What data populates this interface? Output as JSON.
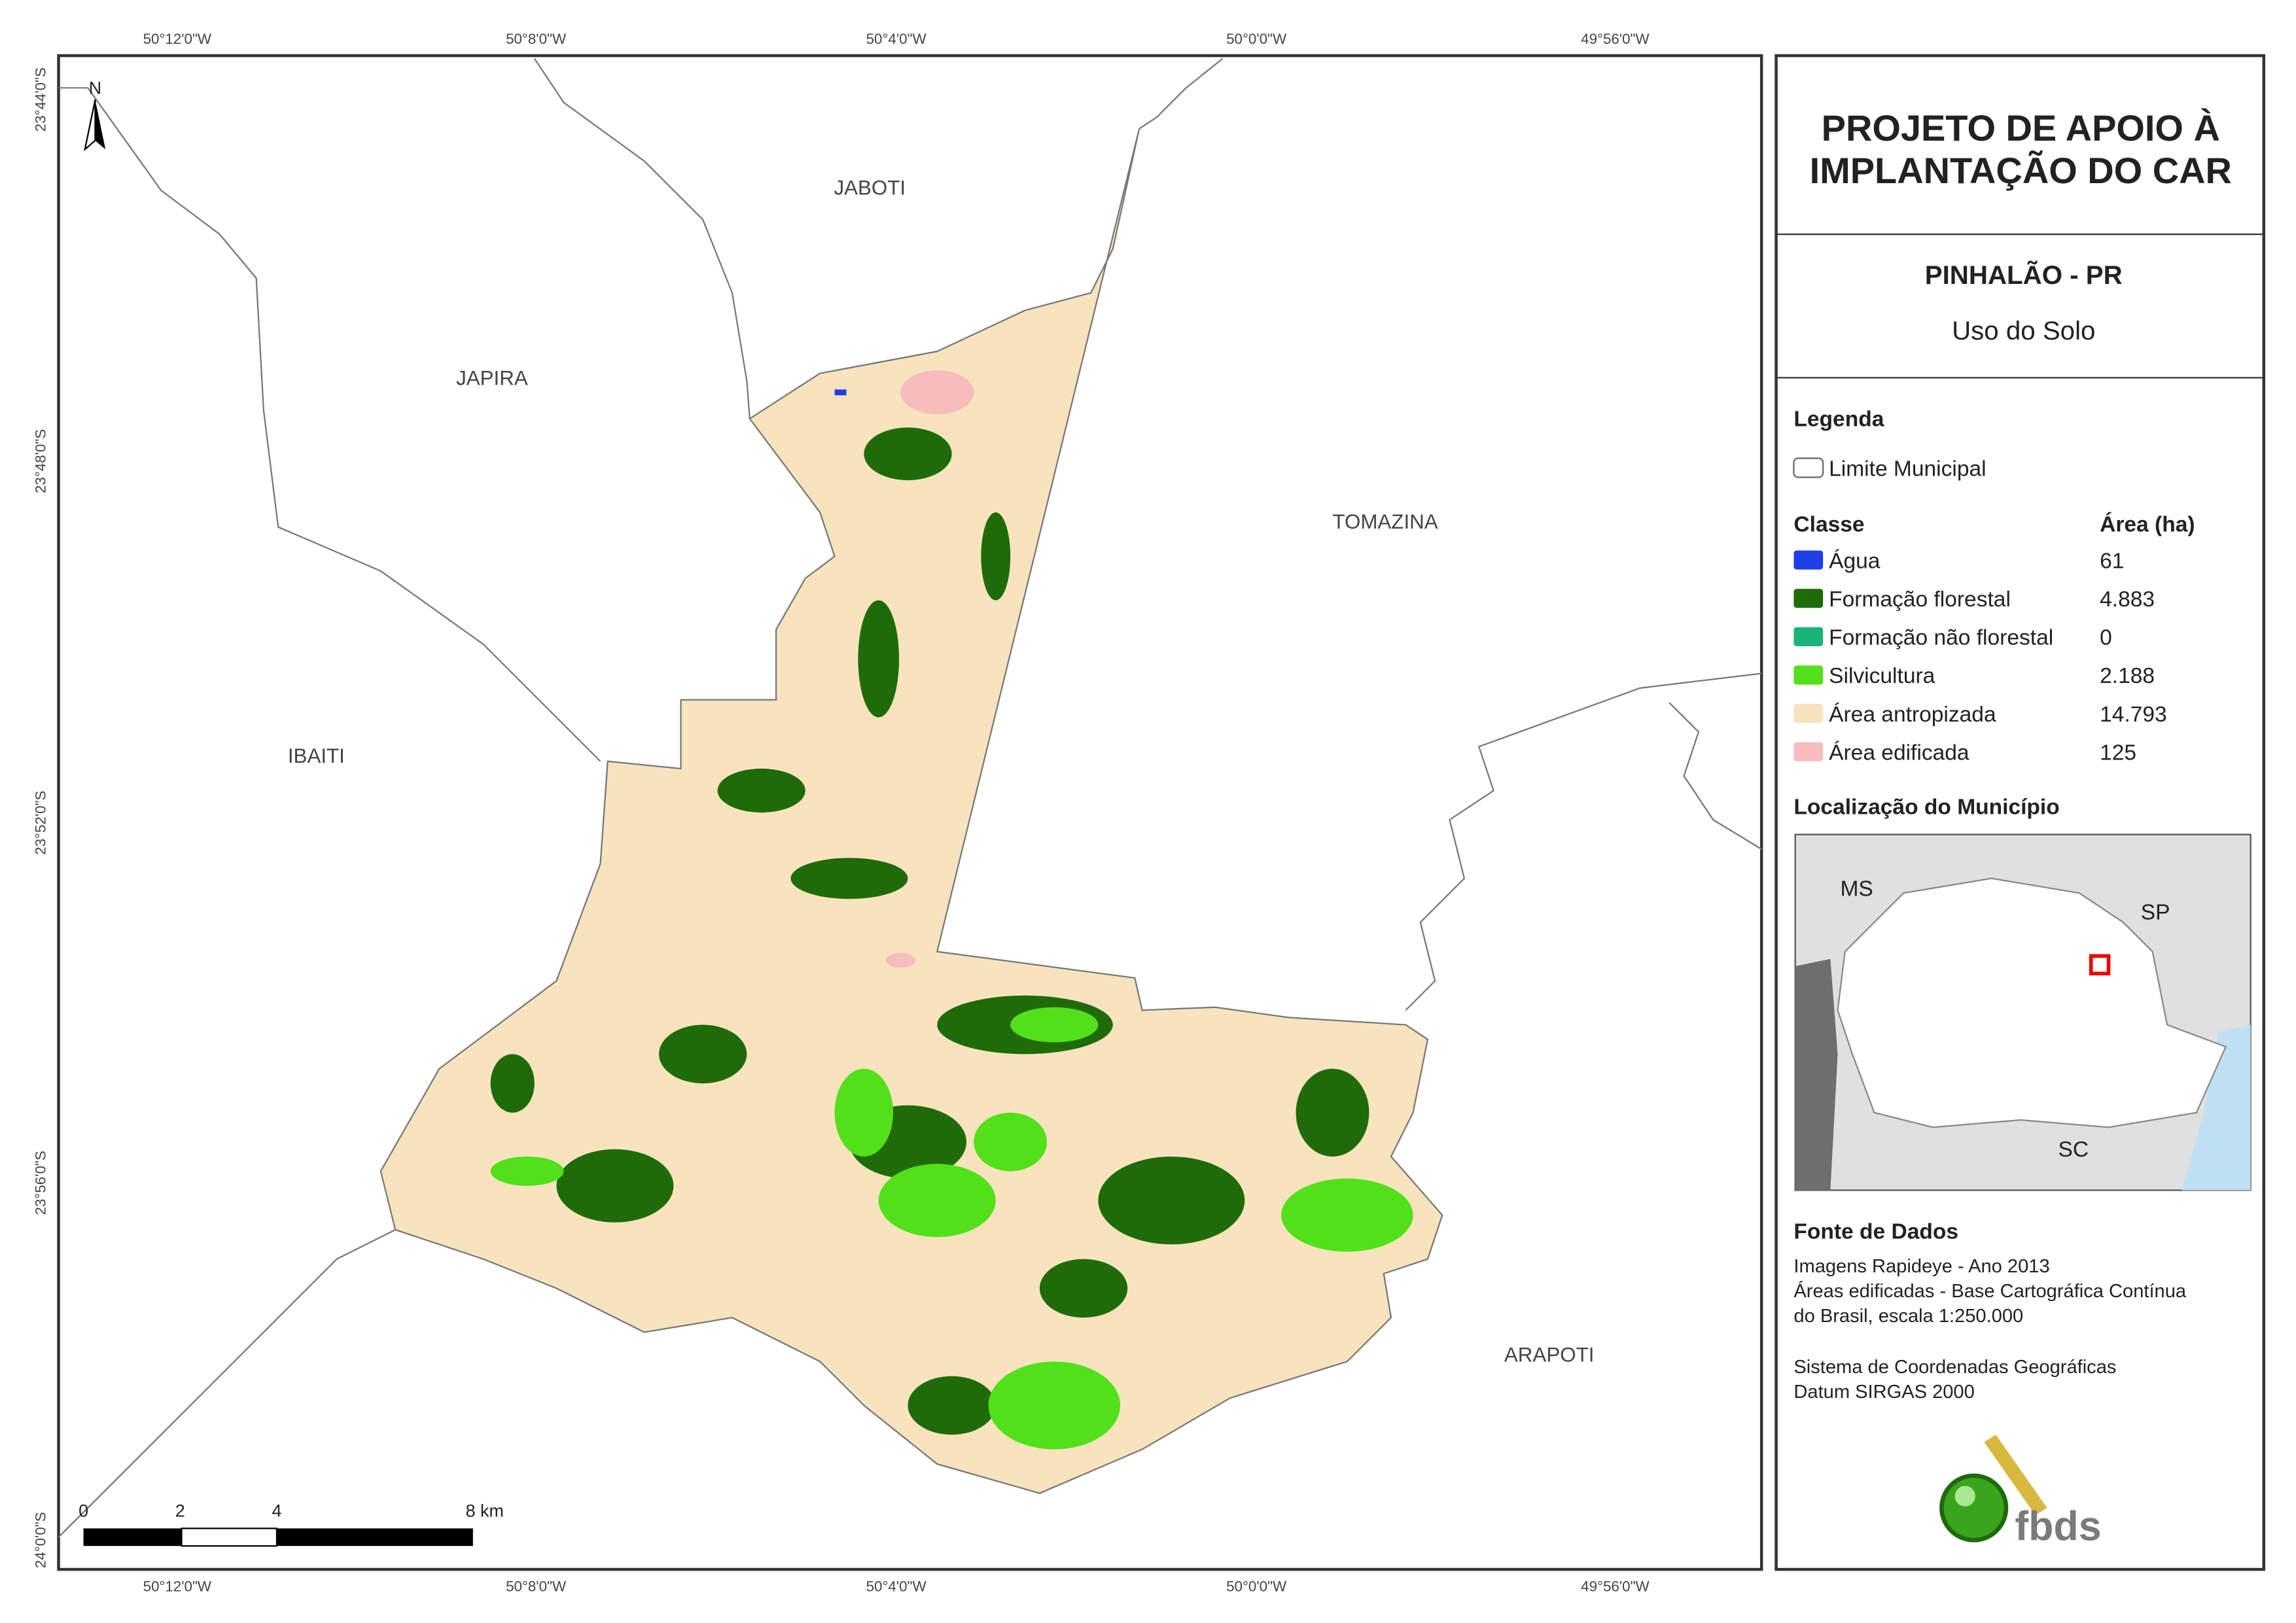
{
  "header": {
    "title_lines": [
      "PROJETO DE APOIO À",
      "IMPLANTAÇÃO DO CAR"
    ],
    "municipality": "PINHALÃO - PR",
    "subtitle": "Uso do Solo"
  },
  "legend": {
    "title": "Legenda",
    "boundary": "Limite Municipal",
    "class_header": "Classe",
    "area_header": "Área (ha)",
    "items": [
      {
        "name": "Água",
        "area": "61",
        "color": "#1f3fe6"
      },
      {
        "name": "Formação florestal",
        "area": "4.883",
        "color": "#1f6b0a"
      },
      {
        "name": "Formação não florestal",
        "area": "0",
        "color": "#18b47a"
      },
      {
        "name": "Silvicultura",
        "area": "2.188",
        "color": "#52e01a"
      },
      {
        "name": "Área antropizada",
        "area": "14.793",
        "color": "#f7e3bd"
      },
      {
        "name": "Área edificada",
        "area": "125",
        "color": "#f7bcbc"
      }
    ]
  },
  "location": {
    "title": "Localização do Município",
    "labels": [
      "MS",
      "SP",
      "SC"
    ]
  },
  "sources": {
    "title": "Fonte de Dados",
    "lines": [
      "Imagens Rapideye - Ano 2013",
      "Áreas edificadas - Base Cartográfica Contínua",
      "do Brasil, escala 1:250.000"
    ],
    "crs_lines": [
      "Sistema de Coordenadas Geográficas",
      "Datum SIRGAS 2000"
    ]
  },
  "logo": "fbds",
  "map": {
    "north": "N",
    "top_lon_labels": [
      "50°12'0\"W",
      "50°8'0\"W",
      "50°4'0\"W",
      "50°0'0\"W",
      "49°56'0\"W"
    ],
    "bottom_lon_labels": [
      "50°12'0\"W",
      "50°8'0\"W",
      "50°4'0\"W",
      "50°0'0\"W",
      "49°56'0\"W"
    ],
    "lat_labels": [
      "23°44'0\"S",
      "23°48'0\"S",
      "23°52'0\"S",
      "23°56'0\"S",
      "24°0'0\"S"
    ],
    "places": [
      "JABOTI",
      "JAPIRA",
      "TOMAZINA",
      "IBAITI",
      "ARAPOTI"
    ],
    "scale": [
      "0",
      "2",
      "4",
      "8 km"
    ]
  }
}
